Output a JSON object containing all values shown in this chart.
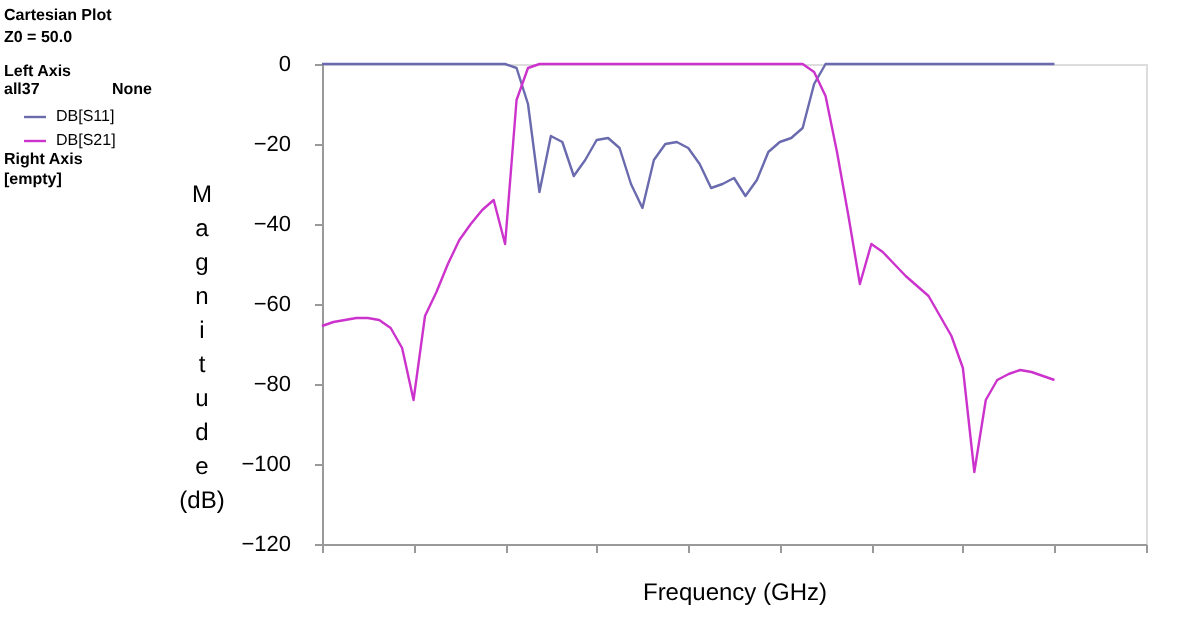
{
  "chart_data": {
    "type": "line",
    "title": "Cartesian Plot",
    "subtitle": "Z0 = 50.0",
    "legend_title": "Left Axis",
    "annotations": [
      "all37",
      "None",
      "Right Axis",
      "[empty]"
    ],
    "xlabel": "Frequency (GHz)",
    "ylabel": "Magnitude (dB)",
    "categories": [
      null,
      null,
      null,
      null,
      null,
      null,
      null,
      null,
      null,
      null,
      null,
      null,
      null,
      null,
      null,
      null,
      null,
      null,
      null,
      null,
      null,
      null,
      null,
      null,
      null,
      null,
      null,
      null,
      null,
      null,
      null,
      null,
      null,
      null,
      null,
      null,
      null,
      null,
      null,
      null,
      null,
      null,
      null,
      null,
      null,
      null,
      null,
      null,
      null,
      null,
      null,
      null,
      null,
      null,
      null,
      null,
      null,
      null,
      null,
      null,
      null,
      null,
      null,
      null,
      null,
      null,
      null,
      null,
      null,
      null,
      null,
      null,
      null
    ],
    "ylim": [
      -120,
      0
    ],
    "yticks": [
      -120,
      -100,
      -80,
      -60,
      -40,
      -20,
      0
    ],
    "grid": false,
    "legend": "left",
    "marker": "none",
    "line_style": "solid",
    "series": [
      {
        "name": "DB[S11]",
        "color": "#6a6aae",
        "values": [
          0,
          0,
          0,
          0,
          0,
          0,
          0,
          0,
          0,
          0,
          0,
          0,
          0,
          0,
          0,
          0,
          0,
          -1,
          -10,
          -32,
          -18,
          -19.5,
          -28,
          -24,
          -19,
          -18.5,
          -21,
          -30,
          -36,
          -24,
          -20,
          -19.5,
          -21,
          -25,
          -31,
          -30,
          -28.5,
          -33,
          -29,
          -22,
          -19.5,
          -18.5,
          -16,
          -5,
          0,
          0,
          0,
          0,
          0,
          0,
          0,
          0,
          0,
          0,
          0,
          0,
          0,
          0,
          0,
          0,
          0,
          0,
          0,
          0,
          0,
          null,
          null,
          null,
          null,
          null,
          null,
          null,
          null
        ]
      },
      {
        "name": "DB[S21]",
        "color": "#cc33cc",
        "values": [
          -65.5,
          -64.5,
          -64,
          -63.5,
          -63.5,
          -64,
          -66,
          -71,
          -84,
          -63,
          -57,
          -50,
          -44,
          -40,
          -36.5,
          -34,
          -45,
          -9,
          -1,
          0,
          0,
          0,
          0,
          0,
          0,
          0,
          0,
          0,
          0,
          0,
          0,
          0,
          0,
          0,
          0,
          0,
          0,
          0,
          0,
          0,
          0,
          0,
          0,
          -2,
          -8,
          -22,
          -38,
          -55,
          -45,
          -47,
          -50,
          -53,
          -55.5,
          -58,
          -63,
          -68,
          -76,
          -102,
          -84,
          -79,
          -77.5,
          -76.5,
          -77,
          -78,
          -79,
          null,
          null,
          null,
          null,
          null,
          null,
          null,
          null
        ]
      }
    ]
  }
}
